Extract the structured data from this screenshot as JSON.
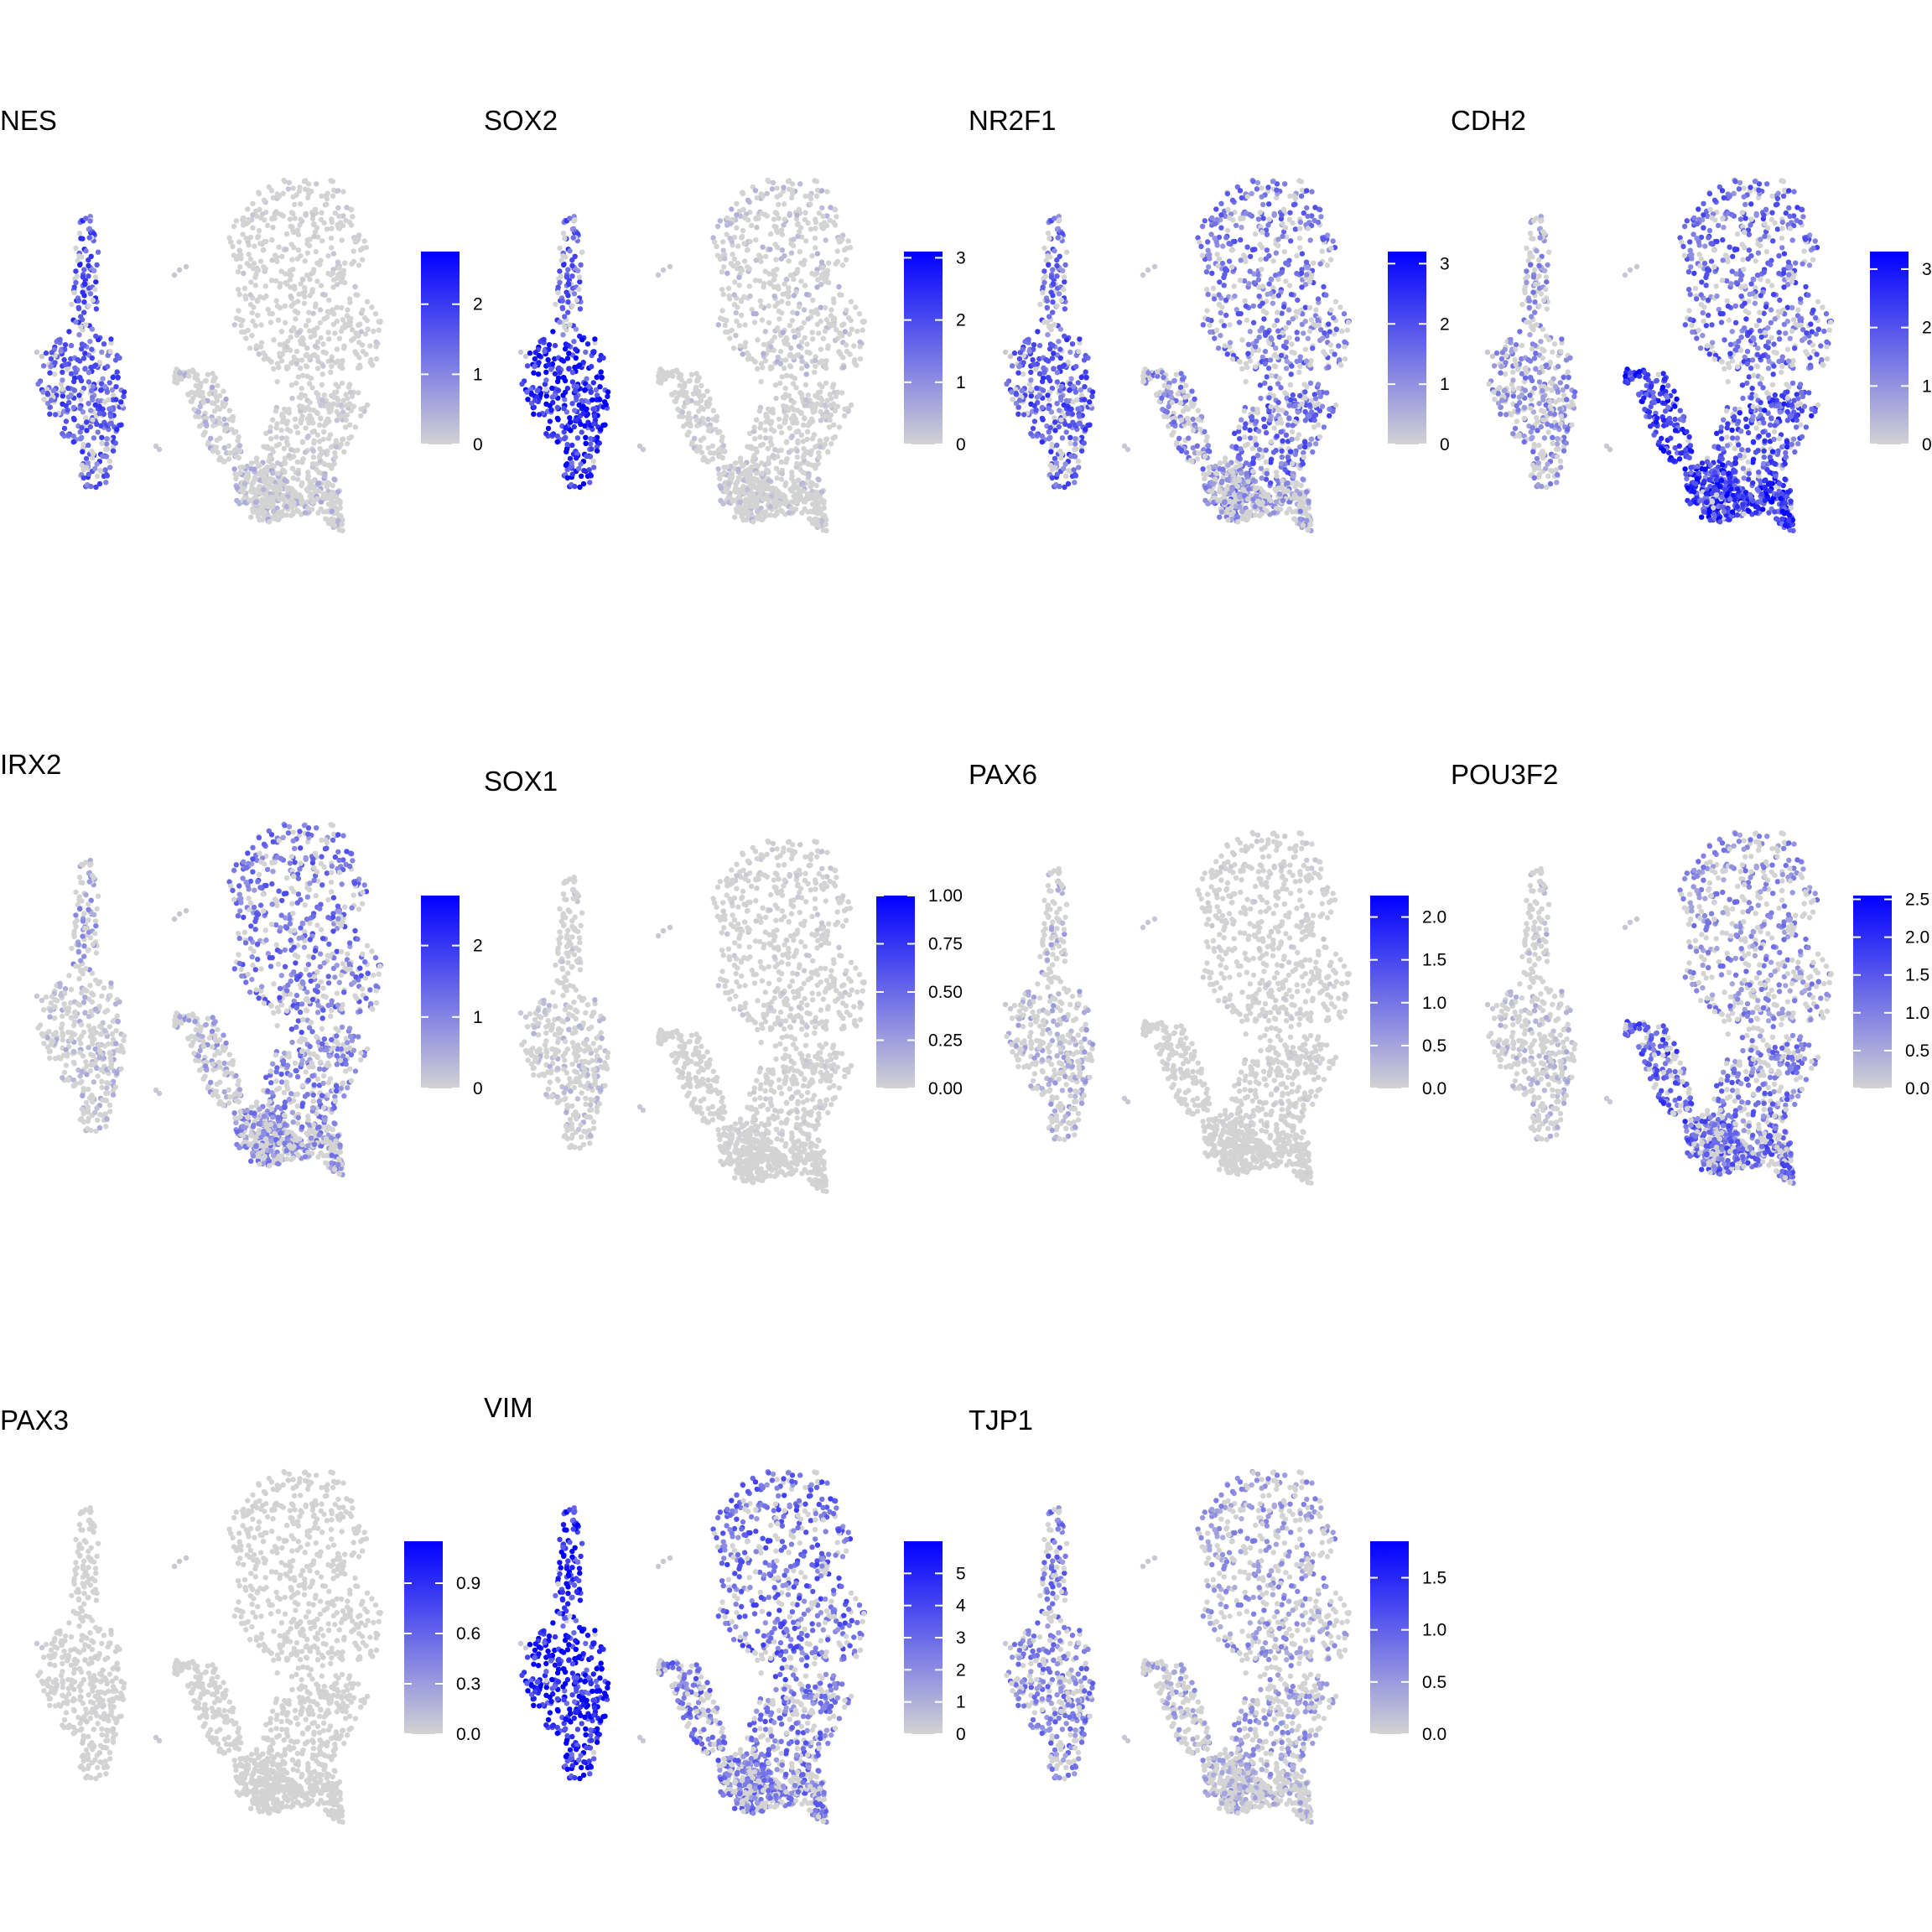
{
  "palette": {
    "low": "#d3d3d3",
    "high": "#0000ff",
    "background": "#ffffff"
  },
  "chart_data": [
    {
      "type": "scatter",
      "title": "NES",
      "scale": {
        "min": 0,
        "max": 2.75,
        "ticks": [
          "0",
          "1",
          "2"
        ],
        "tick_values": [
          0,
          1,
          2
        ]
      },
      "expression": {
        "small_cluster_top": 0.6,
        "small_cluster_bottom": 0.55,
        "large_cluster_upper": 0.05,
        "large_cluster_mid": 0.07,
        "large_cluster_lower": 0.15,
        "left_satellite": 0.15
      }
    },
    {
      "type": "scatter",
      "title": "SOX2",
      "scale": {
        "min": 0,
        "max": 3.1,
        "ticks": [
          "0",
          "1",
          "2",
          "3"
        ],
        "tick_values": [
          0,
          1,
          2,
          3
        ]
      },
      "expression": {
        "small_cluster_top": 0.55,
        "small_cluster_bottom": 0.8,
        "large_cluster_upper": 0.12,
        "large_cluster_mid": 0.06,
        "large_cluster_lower": 0.1,
        "left_satellite": 0.08
      }
    },
    {
      "type": "scatter",
      "title": "NR2F1",
      "scale": {
        "min": 0,
        "max": 3.2,
        "ticks": [
          "0",
          "1",
          "2",
          "3"
        ],
        "tick_values": [
          0,
          1,
          2,
          3
        ]
      },
      "expression": {
        "small_cluster_top": 0.5,
        "small_cluster_bottom": 0.55,
        "large_cluster_upper": 0.45,
        "large_cluster_mid": 0.5,
        "large_cluster_lower": 0.3,
        "left_satellite": 0.4
      }
    },
    {
      "type": "scatter",
      "title": "CDH2",
      "scale": {
        "min": 0,
        "max": 3.3,
        "ticks": [
          "0",
          "1",
          "2",
          "3"
        ],
        "tick_values": [
          0,
          1,
          2,
          3
        ]
      },
      "expression": {
        "small_cluster_top": 0.35,
        "small_cluster_bottom": 0.35,
        "large_cluster_upper": 0.5,
        "large_cluster_mid": 0.6,
        "large_cluster_lower": 0.7,
        "left_satellite": 0.7
      }
    },
    {
      "type": "scatter",
      "title": "IRX2",
      "scale": {
        "min": 0,
        "max": 2.7,
        "ticks": [
          "0",
          "1",
          "2"
        ],
        "tick_values": [
          0,
          1,
          2
        ]
      },
      "expression": {
        "small_cluster_top": 0.3,
        "small_cluster_bottom": 0.15,
        "large_cluster_upper": 0.45,
        "large_cluster_mid": 0.4,
        "large_cluster_lower": 0.35,
        "left_satellite": 0.25
      }
    },
    {
      "type": "scatter",
      "title": "SOX1",
      "scale": {
        "min": 0,
        "max": 1.0,
        "ticks": [
          "0.00",
          "0.25",
          "0.50",
          "0.75",
          "1.00"
        ],
        "tick_values": [
          0,
          0.25,
          0.5,
          0.75,
          1.0
        ]
      },
      "expression": {
        "small_cluster_top": 0.08,
        "small_cluster_bottom": 0.12,
        "large_cluster_upper": 0.05,
        "large_cluster_mid": 0.04,
        "large_cluster_lower": 0.02,
        "left_satellite": 0.03
      }
    },
    {
      "type": "scatter",
      "title": "PAX6",
      "scale": {
        "min": 0,
        "max": 2.25,
        "ticks": [
          "0.0",
          "0.5",
          "1.0",
          "1.5",
          "2.0"
        ],
        "tick_values": [
          0,
          0.5,
          1.0,
          1.5,
          2.0
        ]
      },
      "expression": {
        "small_cluster_top": 0.2,
        "small_cluster_bottom": 0.2,
        "large_cluster_upper": 0.04,
        "large_cluster_mid": 0.04,
        "large_cluster_lower": 0.02,
        "left_satellite": 0.03
      }
    },
    {
      "type": "scatter",
      "title": "POU3F2",
      "scale": {
        "min": 0,
        "max": 2.55,
        "ticks": [
          "0.0",
          "0.5",
          "1.0",
          "1.5",
          "2.0",
          "2.5"
        ],
        "tick_values": [
          0,
          0.5,
          1.0,
          1.5,
          2.0,
          2.5
        ]
      },
      "expression": {
        "small_cluster_top": 0.15,
        "small_cluster_bottom": 0.15,
        "large_cluster_upper": 0.35,
        "large_cluster_mid": 0.45,
        "large_cluster_lower": 0.5,
        "left_satellite": 0.55
      }
    },
    {
      "type": "scatter",
      "title": "PAX3",
      "scale": {
        "min": 0,
        "max": 1.15,
        "ticks": [
          "0.0",
          "0.3",
          "0.6",
          "0.9"
        ],
        "tick_values": [
          0,
          0.3,
          0.6,
          0.9
        ]
      },
      "expression": {
        "small_cluster_top": 0.01,
        "small_cluster_bottom": 0.02,
        "large_cluster_upper": 0.01,
        "large_cluster_mid": 0.01,
        "large_cluster_lower": 0.0,
        "left_satellite": 0.0
      }
    },
    {
      "type": "scatter",
      "title": "VIM",
      "scale": {
        "min": 0,
        "max": 6.0,
        "ticks": [
          "0",
          "1",
          "2",
          "3",
          "4",
          "5"
        ],
        "tick_values": [
          0,
          1,
          2,
          3,
          4,
          5
        ]
      },
      "expression": {
        "small_cluster_top": 0.8,
        "small_cluster_bottom": 0.85,
        "large_cluster_upper": 0.5,
        "large_cluster_mid": 0.45,
        "large_cluster_lower": 0.42,
        "left_satellite": 0.45
      }
    },
    {
      "type": "scatter",
      "title": "TJP1",
      "scale": {
        "min": 0,
        "max": 1.85,
        "ticks": [
          "0.0",
          "0.5",
          "1.0",
          "1.5"
        ],
        "tick_values": [
          0,
          0.5,
          1.0,
          1.5
        ]
      },
      "expression": {
        "small_cluster_top": 0.45,
        "small_cluster_bottom": 0.4,
        "large_cluster_upper": 0.3,
        "large_cluster_mid": 0.3,
        "large_cluster_lower": 0.2,
        "left_satellite": 0.25
      }
    }
  ]
}
